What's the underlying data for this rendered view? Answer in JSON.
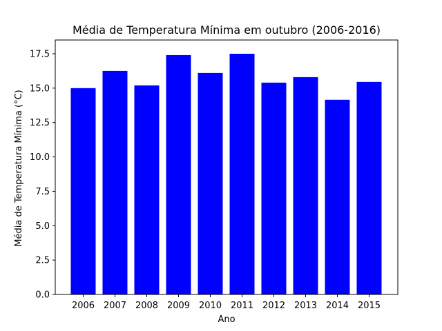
{
  "chart_data": {
    "type": "bar",
    "title": "Média de Temperatura Mínima em outubro (2006-2016)",
    "xlabel": "Ano",
    "ylabel": "Média de Temperatura Mínima (°C)",
    "categories": [
      "2006",
      "2007",
      "2008",
      "2009",
      "2010",
      "2011",
      "2012",
      "2013",
      "2014",
      "2015"
    ],
    "values": [
      15.0,
      16.25,
      15.2,
      17.4,
      16.1,
      17.5,
      15.4,
      15.8,
      14.15,
      15.45
    ],
    "ylim": [
      0,
      18.5
    ],
    "yticks": [
      "0.0",
      "2.5",
      "5.0",
      "7.5",
      "10.0",
      "12.5",
      "15.0",
      "17.5"
    ],
    "grid": false,
    "bar_color": "#0000ff"
  }
}
